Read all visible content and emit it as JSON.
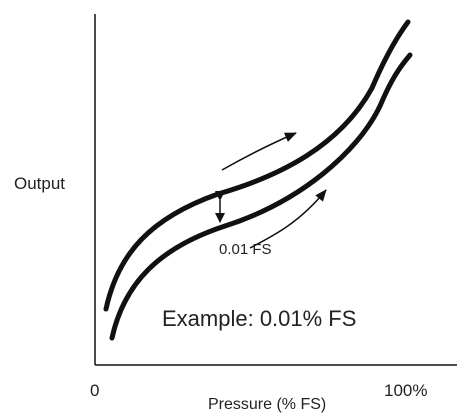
{
  "figure": {
    "ylabel": "Output",
    "xlabel": "Pressure (% FS)",
    "x_start_label": "0",
    "x_end_label": "100%",
    "gap_label": "0.01 FS",
    "example_text": "Example: 0.01% FS",
    "curve_color": "#111111",
    "text_color": "#222222"
  }
}
